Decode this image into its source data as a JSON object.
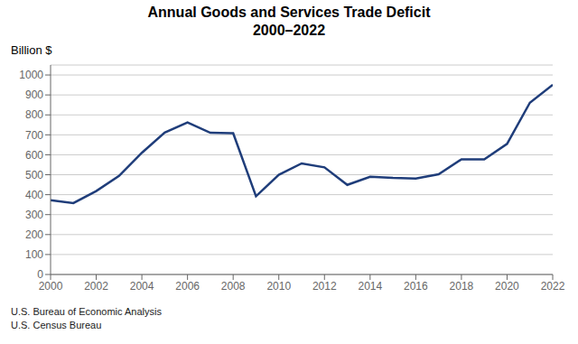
{
  "chart_data": {
    "type": "line",
    "title": "Annual Goods and Services Trade Deficit",
    "subtitle": "2000–2022",
    "ylabel": "Billion $",
    "annotations": [
      "U.S. Bureau of Economic Analysis",
      "U.S. Census Bureau"
    ],
    "x": [
      2000,
      2001,
      2002,
      2003,
      2004,
      2005,
      2006,
      2007,
      2008,
      2009,
      2010,
      2011,
      2012,
      2013,
      2014,
      2015,
      2016,
      2017,
      2018,
      2019,
      2020,
      2021,
      2022
    ],
    "values": [
      372,
      358,
      418,
      494,
      610,
      711,
      762,
      710,
      708,
      392,
      500,
      557,
      537,
      449,
      490,
      484,
      481,
      502,
      577,
      577,
      655,
      861,
      951
    ],
    "color": "#1f3d7a",
    "xlim": [
      2000,
      2022
    ],
    "xticks": [
      2000,
      2002,
      2004,
      2006,
      2008,
      2010,
      2012,
      2014,
      2016,
      2018,
      2020,
      2022
    ],
    "ylim": [
      0,
      1050
    ],
    "yticks": [
      0,
      100,
      200,
      300,
      400,
      500,
      600,
      700,
      800,
      900,
      1000
    ],
    "grid": true
  }
}
